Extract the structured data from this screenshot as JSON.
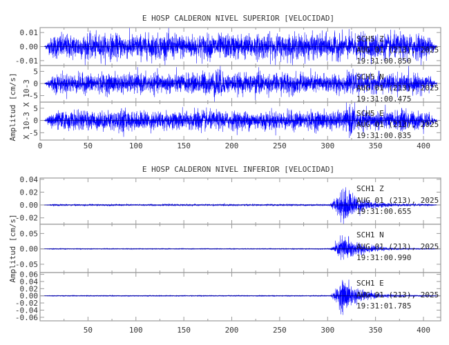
{
  "chart_data": [
    {
      "type": "line",
      "title": "E HOSP CALDERON NIVEL SUPERIOR [VELOCIDAD]",
      "ylabel": "Amplitud [cm/s]",
      "ylabel_scale": "X 10-3",
      "xlim": [
        0,
        418
      ],
      "xticks": [
        "0",
        "50",
        "100",
        "150",
        "200",
        "250",
        "300",
        "350",
        "400"
      ],
      "trace_color": "#0000ff",
      "panels": [
        {
          "station": "SCH5",
          "component": "Z",
          "date": "AUG 01 (213), 2025",
          "time": "19:31:00.850",
          "ylim": [
            -0.0135,
            0.0135
          ],
          "ytick_values": [
            0.01,
            0,
            -0.01
          ],
          "yticks": [
            "0.01",
            "0.00",
            "-0.01"
          ],
          "peak_amplitude": 0.013,
          "scale_label": ""
        },
        {
          "station": "SCH5",
          "component": "N",
          "date": "AUG 01 (213), 2025",
          "time": "19:31:00.475",
          "ylim": [
            -7.7,
            7.4
          ],
          "ytick_values": [
            5,
            0,
            -5
          ],
          "yticks": [
            "5",
            "0",
            "-5"
          ],
          "peak_amplitude": 8,
          "scale_label": "X 10-3"
        },
        {
          "station": "SCH5",
          "component": "E",
          "date": "AUG 01 (213), 2025",
          "time": "19:31:00.835",
          "ylim": [
            -8,
            7.5
          ],
          "ytick_values": [
            5,
            0,
            -5
          ],
          "yticks": [
            "5",
            "0",
            "-5"
          ],
          "peak_amplitude": 7,
          "scale_label": "X 10-3"
        }
      ]
    },
    {
      "type": "line",
      "title": "E HOSP CALDERON NIVEL INFERIOR [VELOCIDAD]",
      "ylabel": "Amplitud [cm/s]",
      "xlim": [
        0,
        418
      ],
      "xticks": [
        "50",
        "100",
        "150",
        "200",
        "250",
        "300",
        "350",
        "400"
      ],
      "trace_color": "#0000ff",
      "panels": [
        {
          "station": "SCH1",
          "component": "Z",
          "date": "AUG 01 (213), 2025",
          "time": "19:31:00.655",
          "ylim": [
            -0.03,
            0.042
          ],
          "ytick_values": [
            0.04,
            0.02,
            0,
            -0.02
          ],
          "yticks": [
            "0.04",
            "0.02",
            "0.00",
            "-0.02"
          ],
          "peak_amplitude": 0.04,
          "event_onset": 302
        },
        {
          "station": "SCH1",
          "component": "N",
          "date": "AUG 01 (213), 2025",
          "time": "19:31:00.990",
          "ylim": [
            -0.077,
            0.08
          ],
          "ytick_values": [
            0.05,
            0,
            -0.05
          ],
          "yticks": [
            "0.05",
            "0.00",
            "-0.05"
          ],
          "peak_amplitude": 0.07,
          "event_onset": 302
        },
        {
          "station": "SCH1",
          "component": "E",
          "date": "AUG 01 (213), 2025",
          "time": "19:31:01.785",
          "ylim": [
            -0.07,
            0.065
          ],
          "ytick_values": [
            0.06,
            0.04,
            0.02,
            0,
            -0.02,
            -0.04,
            -0.06
          ],
          "yticks": [
            "0.06",
            "0.04",
            "0.02",
            "0.00",
            "-0.02",
            "-0.04",
            "-0.06"
          ],
          "peak_amplitude": 0.065,
          "event_onset": 302
        }
      ]
    }
  ]
}
